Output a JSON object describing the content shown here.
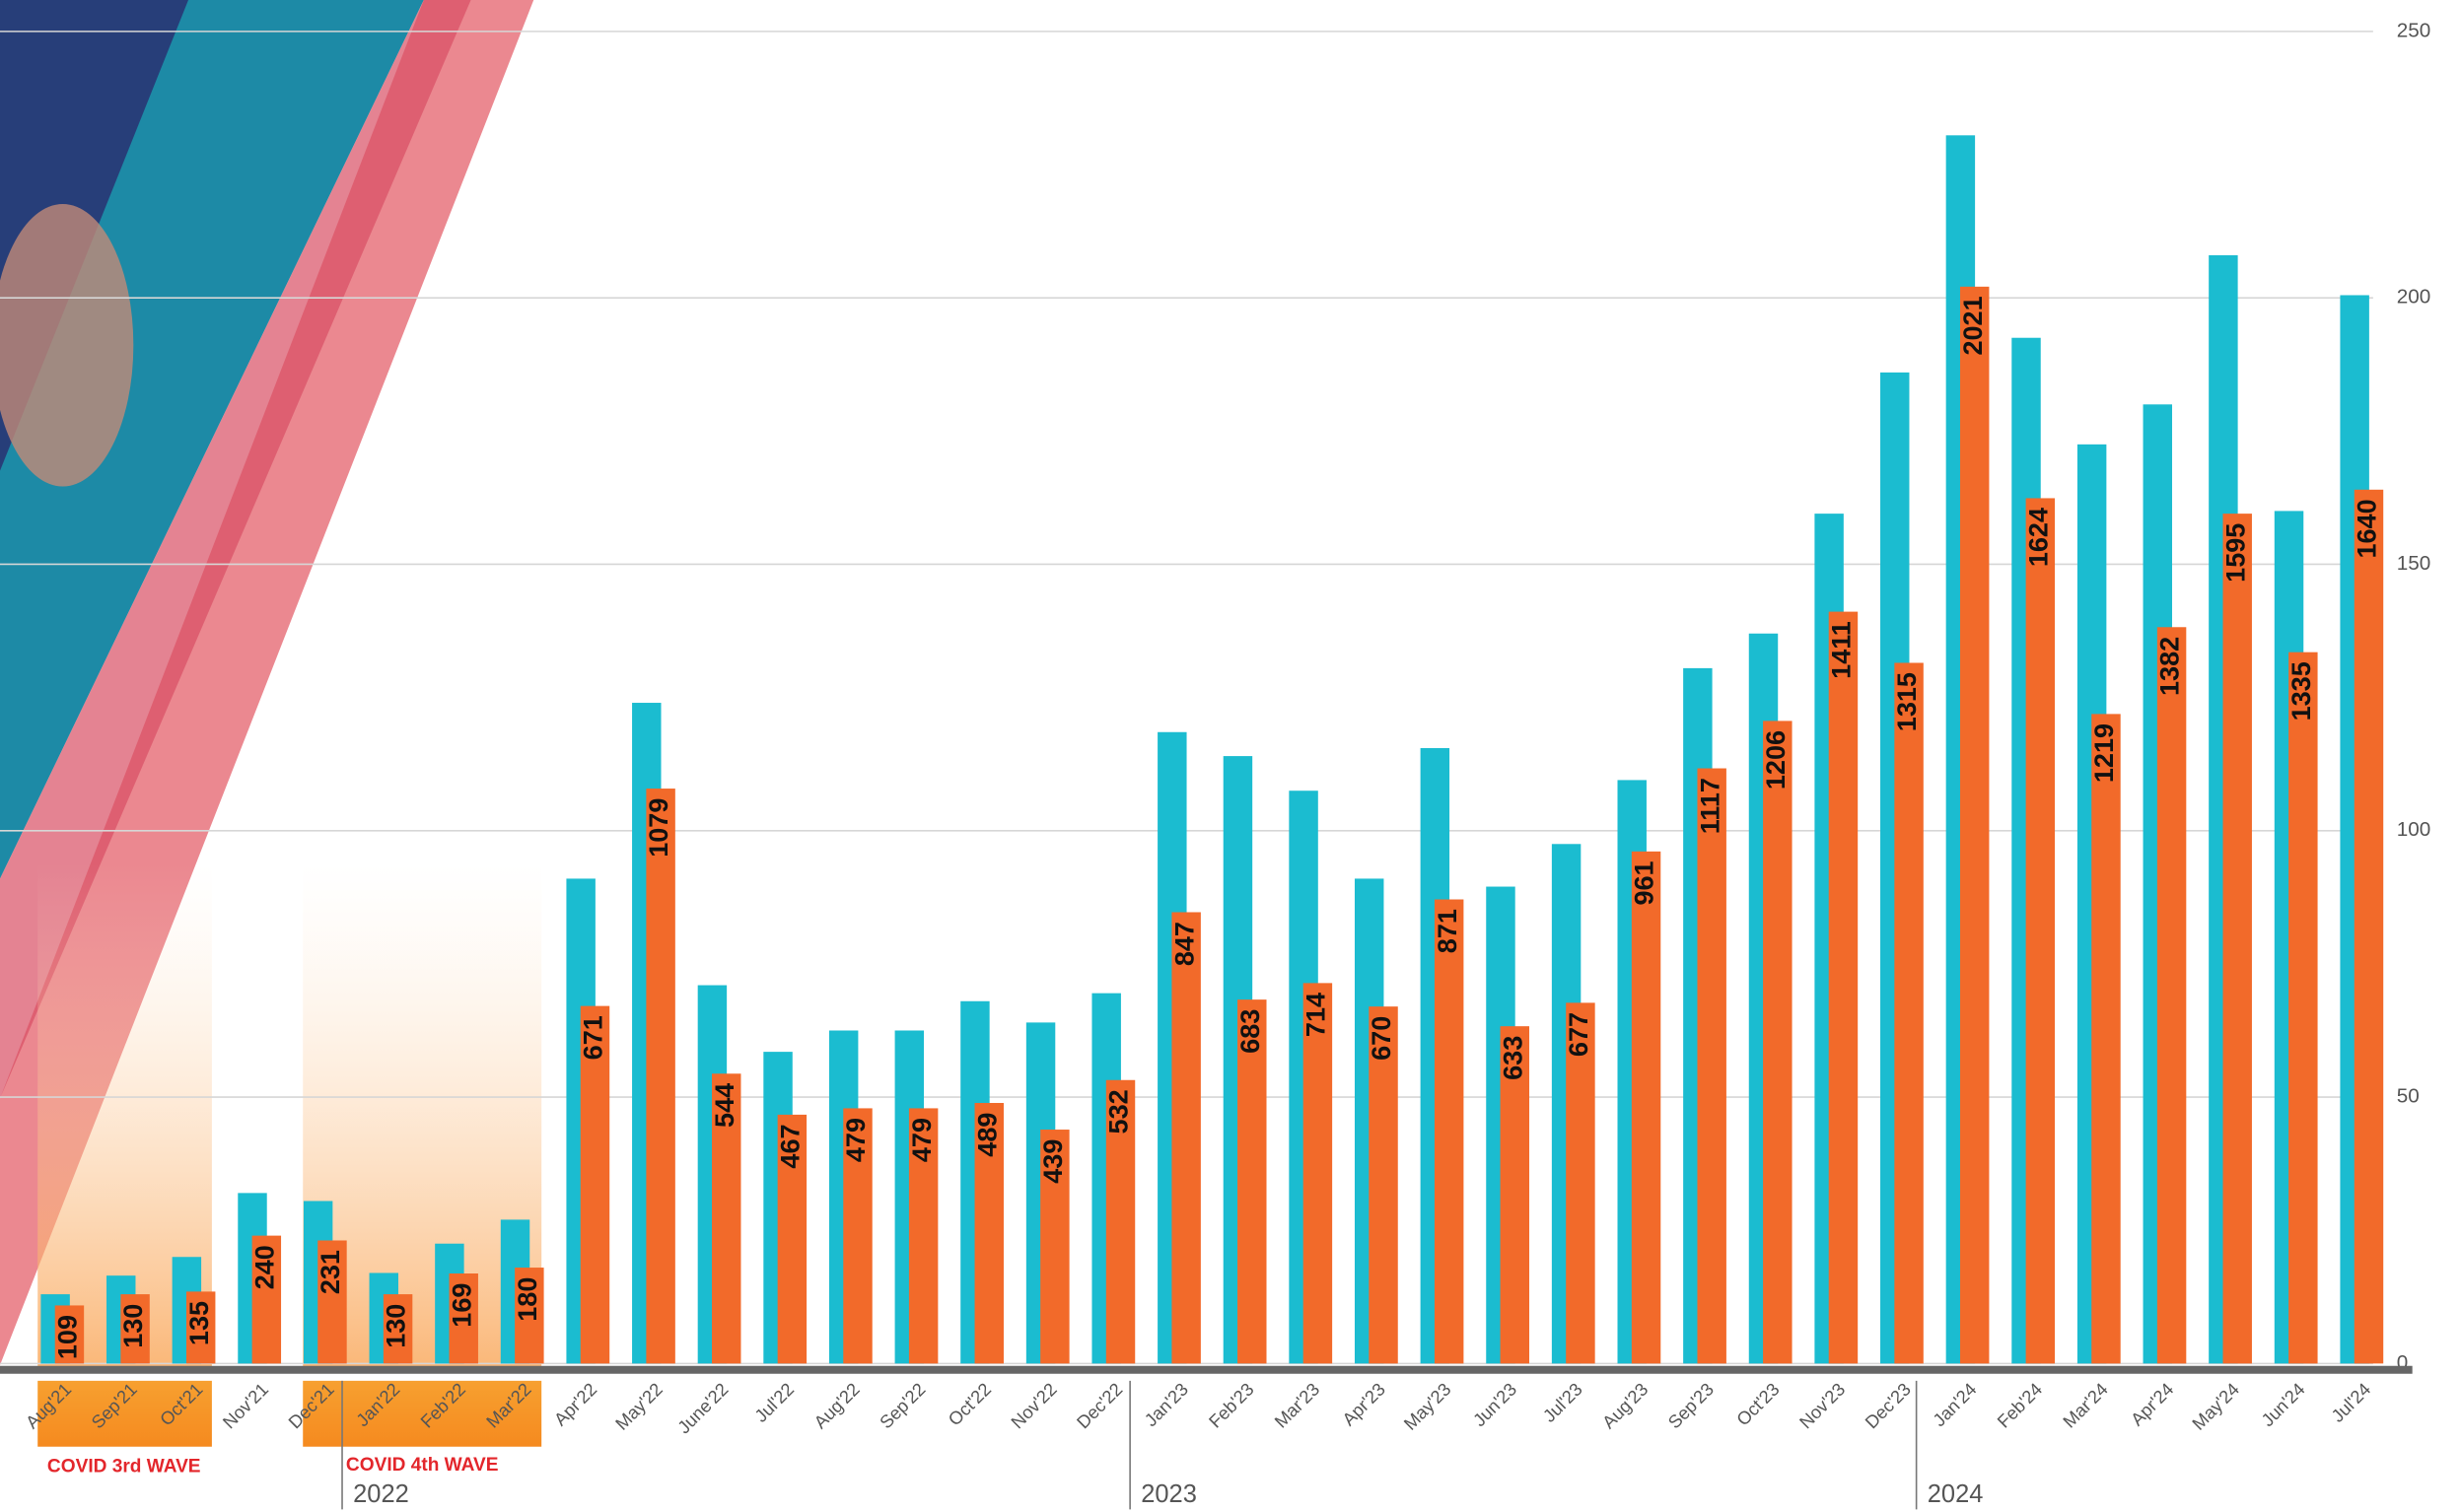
{
  "chart_data": {
    "type": "bar",
    "categories": [
      "Aug'21",
      "Sep'21",
      "Oct'21",
      "Nov'21",
      "Dec'21",
      "Jan'22",
      "Feb'22",
      "Mar'22",
      "Apr'22",
      "May'22",
      "June'22",
      "Jul'22",
      "Aug'22",
      "Sep'22",
      "Oct'22",
      "Nov'22",
      "Dec'22",
      "Jan'23",
      "Feb'23",
      "Mar'23",
      "Apr'23",
      "May'23",
      "Jun'23",
      "Jul'23",
      "Aug'23",
      "Sep'23",
      "Oct'23",
      "Nov'23",
      "Dec'23",
      "Jan'24",
      "Feb'24",
      "Mar'24",
      "Apr'24",
      "May'24",
      "Jun'24",
      "Jul'24"
    ],
    "series": [
      {
        "color": "#1bbcd0",
        "values": [
          130,
          165,
          200,
          320,
          305,
          170,
          225,
          270,
          910,
          1240,
          710,
          585,
          625,
          625,
          680,
          640,
          695,
          1185,
          1140,
          1075,
          910,
          1155,
          895,
          975,
          1095,
          1305,
          1370,
          1595,
          1860,
          2305,
          1925,
          1725,
          1800,
          2080,
          1600,
          2005
        ]
      },
      {
        "color": "#f26a2a",
        "values": [
          109,
          130,
          135,
          240,
          231,
          130,
          169,
          180,
          671,
          1079,
          544,
          467,
          479,
          479,
          489,
          439,
          532,
          847,
          683,
          714,
          670,
          871,
          633,
          677,
          961,
          1117,
          1206,
          1411,
          1315,
          2021,
          1624,
          1219,
          1382,
          1595,
          1335,
          1640
        ]
      }
    ],
    "ylim": [
      0,
      2500
    ],
    "yticks": [
      {
        "value": 0,
        "label": "0"
      },
      {
        "value": 500,
        "label": "50"
      },
      {
        "value": 1000,
        "label": "100"
      },
      {
        "value": 1500,
        "label": "150"
      },
      {
        "value": 2000,
        "label": "200"
      },
      {
        "value": 2500,
        "label": "250"
      }
    ],
    "grid": true,
    "annotations": [
      "COVID 3rd WAVE",
      "COVID 4th WAVE",
      "2022",
      "2023",
      "2024"
    ]
  }
}
